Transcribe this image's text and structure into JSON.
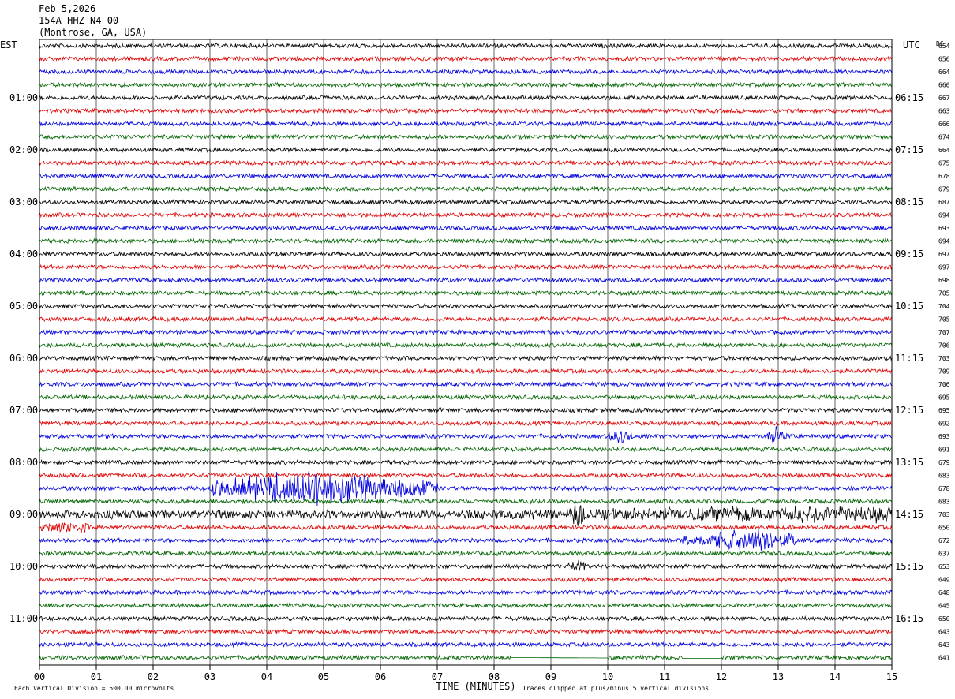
{
  "header": {
    "date": "Feb 5,2026",
    "station": "154A HHZ N4 00",
    "location": "(Montrose, GA, USA)"
  },
  "left_axis_label": "EST",
  "right_axis_label": "UTC",
  "dc_label": "DC",
  "footer": {
    "scale_note": "Each Vertical Division =  500.00 microvolts",
    "xlabel": "TIME (MINUTES)",
    "clip_note": "Traces clipped at plus/minus 5 vertical divisions"
  },
  "chart_data": {
    "type": "line",
    "title": "154A HHZ N4 00",
    "xlabel": "TIME (MINUTES)",
    "xlim": [
      0,
      15
    ],
    "x_ticks": [
      "00",
      "01",
      "02",
      "03",
      "04",
      "05",
      "06",
      "07",
      "08",
      "09",
      "10",
      "11",
      "12",
      "13",
      "14",
      "15"
    ],
    "est_time_labels": [
      "01:00",
      "02:00",
      "03:00",
      "04:00",
      "05:00",
      "06:00",
      "07:00",
      "08:00",
      "09:00",
      "10:00",
      "11:00"
    ],
    "utc_time_labels": [
      "06:15",
      "07:15",
      "08:15",
      "09:15",
      "10:15",
      "11:15",
      "12:15",
      "13:15",
      "14:15",
      "15:15",
      "16:15"
    ],
    "trace_colors": [
      "#000000",
      "#e00000",
      "#0000e0",
      "#006400"
    ],
    "dc_offsets": [
      654,
      656,
      664,
      660,
      667,
      663,
      666,
      674,
      664,
      675,
      678,
      679,
      687,
      694,
      693,
      694,
      697,
      697,
      698,
      705,
      704,
      705,
      707,
      706,
      703,
      709,
      706,
      695,
      695,
      692,
      693,
      691,
      679,
      683,
      678,
      683,
      703,
      650,
      672,
      637,
      653,
      649,
      648,
      645,
      650,
      643,
      643,
      641
    ],
    "events": [
      {
        "trace": 34,
        "start_min": 3.0,
        "end_min": 7.0,
        "peak_min": 4.9,
        "amp_div": 3.5
      },
      {
        "trace": 30,
        "start_min": 10.0,
        "end_min": 10.5,
        "peak_min": 10.2,
        "amp_div": 1.2
      },
      {
        "trace": 30,
        "start_min": 12.8,
        "end_min": 13.2,
        "peak_min": 12.95,
        "amp_div": 1.5
      },
      {
        "trace": 36,
        "start_min": 0.0,
        "end_min": 15.0,
        "peak_min": 14.3,
        "amp_div": 1.3
      },
      {
        "trace": 37,
        "start_min": 0.0,
        "end_min": 1.0,
        "peak_min": 0.5,
        "amp_div": 1.0
      },
      {
        "trace": 38,
        "start_min": 11.3,
        "end_min": 13.3,
        "peak_min": 12.5,
        "amp_div": 2.2
      },
      {
        "trace": 36,
        "start_min": 9.3,
        "end_min": 9.6,
        "peak_min": 9.45,
        "amp_div": 1.8
      },
      {
        "trace": 40,
        "start_min": 9.3,
        "end_min": 9.6,
        "peak_min": 9.45,
        "amp_div": 1.2
      }
    ],
    "flat_segments": [
      {
        "trace": 47,
        "start_min": 8.3,
        "end_min": 10.0
      },
      {
        "trace": 47,
        "start_min": 11.3,
        "end_min": 12.0
      }
    ],
    "grid": "vertical-minutes"
  }
}
